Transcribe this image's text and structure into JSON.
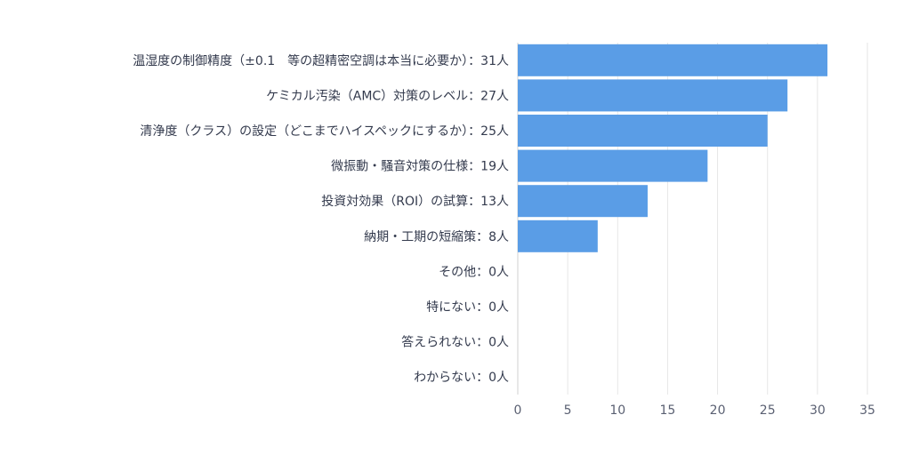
{
  "chart_data": {
    "type": "bar",
    "orientation": "horizontal",
    "title": "",
    "xlabel": "",
    "ylabel": "",
    "xlim": [
      0,
      35
    ],
    "xticks": [
      0,
      5,
      10,
      15,
      20,
      25,
      30,
      35
    ],
    "grid": true,
    "bar_color": "#5a9de6",
    "categories": [
      "温湿度の制御精度（±0.1　等の超精密空調は本当に必要か）",
      "ケミカル汚染（AMC）対策のレベル",
      "清浄度（クラス）の設定（どこまでハイスペックにするか）",
      "微振動・騒音対策の仕様",
      "投資対効果（ROI）の試算",
      "納期・工期の短縮策",
      "その他",
      "特にない",
      "答えられない",
      "わからない"
    ],
    "values": [
      31,
      27,
      25,
      19,
      13,
      8,
      0,
      0,
      0,
      0
    ],
    "unit": "人",
    "labels": [
      "温湿度の制御精度（±0.1　等の超精密空調は本当に必要か）：31人",
      "ケミカル汚染（AMC）対策のレベル：27人",
      "清浄度（クラス）の設定（どこまでハイスペックにするか）：25人",
      "微振動・騒音対策の仕様：19人",
      "投資対効果（ROI）の試算：13人",
      "納期・工期の短縮策：8人",
      "その他：0人",
      "特にない：0人",
      "答えられない：0人",
      "わからない：0人"
    ]
  }
}
